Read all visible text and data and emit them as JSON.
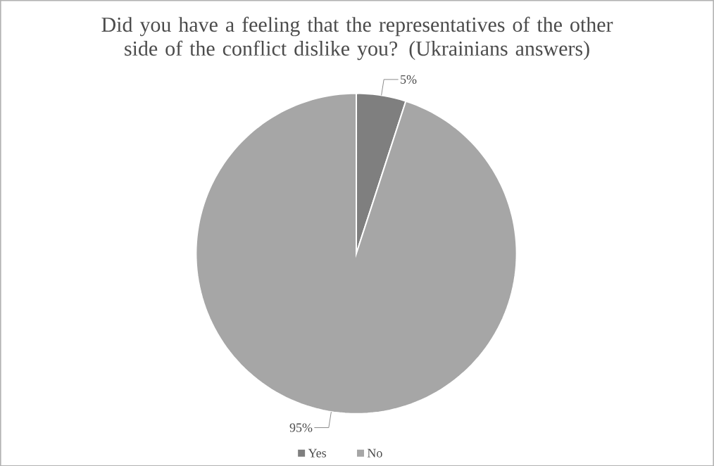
{
  "chart_data": {
    "type": "pie",
    "title": "Did you have a feeling that the representatives of the other side of the conflict dislike you? (Ukrainians answers)",
    "categories": [
      "Yes",
      "No"
    ],
    "values": [
      5,
      95
    ],
    "value_labels": [
      "5%",
      "95%"
    ],
    "colors": [
      "#7f7f7f",
      "#a6a6a6"
    ],
    "legend": "bottom"
  }
}
